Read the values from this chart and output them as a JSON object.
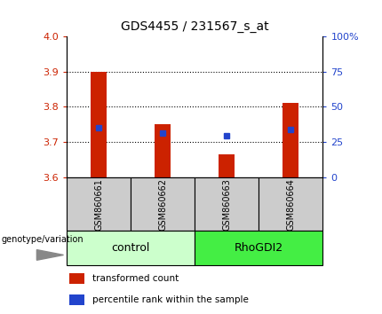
{
  "title": "GDS4455 / 231567_s_at",
  "samples": [
    "GSM860661",
    "GSM860662",
    "GSM860663",
    "GSM860664"
  ],
  "groups": [
    "control",
    "control",
    "RhoGDI2",
    "RhoGDI2"
  ],
  "bar_values": [
    3.9,
    3.75,
    3.665,
    3.81
  ],
  "bar_base": 3.6,
  "percentile_values": [
    3.74,
    3.725,
    3.718,
    3.735
  ],
  "ylim_left": [
    3.6,
    4.0
  ],
  "ylim_right": [
    0,
    100
  ],
  "yticks_left": [
    3.6,
    3.7,
    3.8,
    3.9,
    4.0
  ],
  "yticks_right": [
    0,
    25,
    50,
    75,
    100
  ],
  "ytick_labels_right": [
    "0",
    "25",
    "50",
    "75",
    "100%"
  ],
  "bar_color": "#cc2200",
  "blue_color": "#2244cc",
  "group_colors": {
    "control": "#ccffcc",
    "RhoGDI2": "#44ee44"
  },
  "group_label": "genotype/variation",
  "legend_items": [
    "transformed count",
    "percentile rank within the sample"
  ],
  "bar_width": 0.25,
  "grid_yticks": [
    3.7,
    3.8,
    3.9
  ],
  "sample_box_color": "#cccccc",
  "spine_color": "black"
}
